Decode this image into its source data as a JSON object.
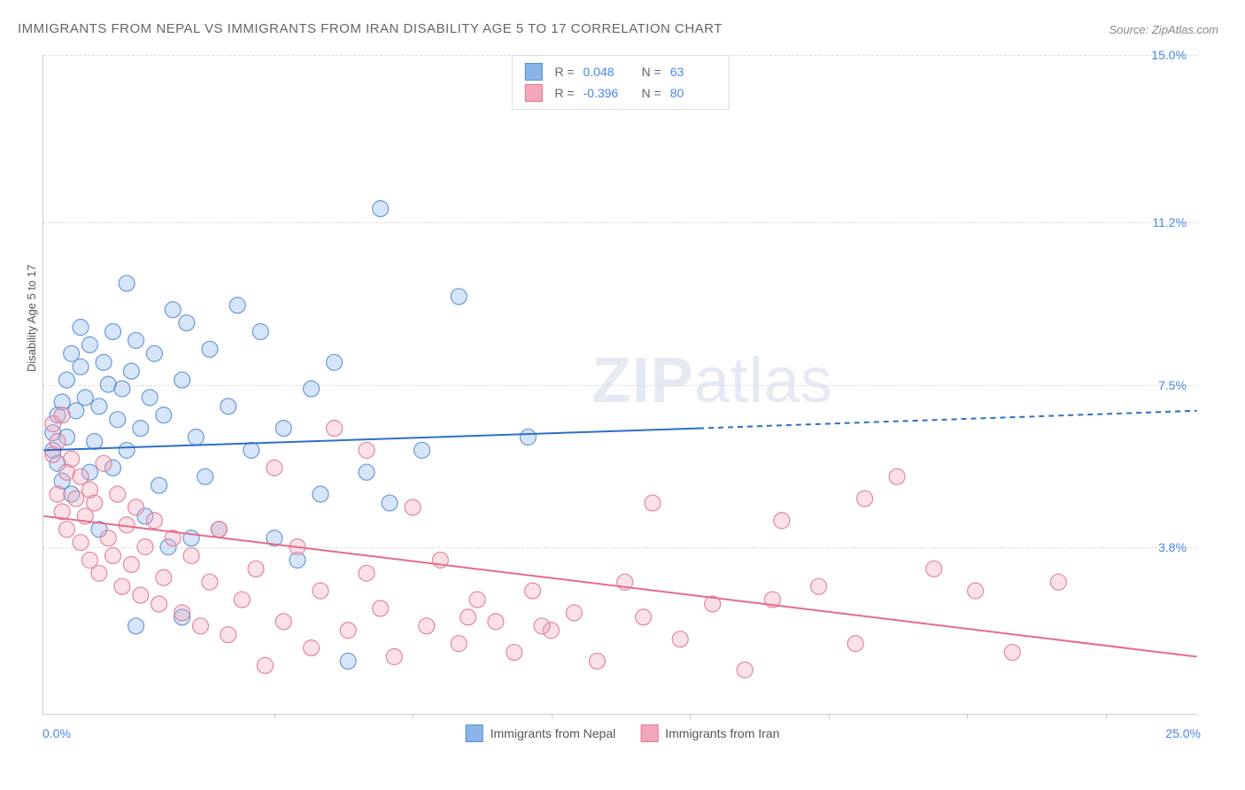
{
  "title": "IMMIGRANTS FROM NEPAL VS IMMIGRANTS FROM IRAN DISABILITY AGE 5 TO 17 CORRELATION CHART",
  "source": "Source: ZipAtlas.com",
  "y_axis_label": "Disability Age 5 to 17",
  "watermark": {
    "bold": "ZIP",
    "light": "atlas"
  },
  "chart": {
    "type": "scatter",
    "xlim": [
      0.0,
      25.0
    ],
    "ylim": [
      0.0,
      15.0
    ],
    "x_start_label": "0.0%",
    "x_end_label": "25.0%",
    "x_tick_positions": [
      5,
      8,
      11,
      14,
      17,
      20,
      23
    ],
    "y_gridlines": [
      {
        "value": 15.0,
        "label": "15.0%"
      },
      {
        "value": 11.2,
        "label": "11.2%"
      },
      {
        "value": 7.5,
        "label": "7.5%"
      },
      {
        "value": 3.8,
        "label": "3.8%"
      }
    ],
    "background_color": "#ffffff",
    "grid_color": "#dddddd",
    "axis_color": "#cccccc",
    "tick_label_color": "#4a86e8",
    "marker_radius": 9,
    "marker_fill_opacity": 0.35,
    "series": [
      {
        "name": "Immigrants from Nepal",
        "fill_color": "#8ab4e8",
        "stroke_color": "#5b8fd6",
        "stats": {
          "R": "0.048",
          "N": "63"
        },
        "regression": {
          "solid": {
            "x1": 0.0,
            "y1": 6.0,
            "x2": 14.2,
            "y2": 6.5
          },
          "dashed": {
            "x1": 14.2,
            "y1": 6.5,
            "x2": 25.0,
            "y2": 6.9
          },
          "line_color": "#2e6fc9",
          "line_width": 2
        },
        "points": [
          [
            0.2,
            6.0
          ],
          [
            0.2,
            6.4
          ],
          [
            0.3,
            5.7
          ],
          [
            0.3,
            6.8
          ],
          [
            0.4,
            7.1
          ],
          [
            0.4,
            5.3
          ],
          [
            0.5,
            6.3
          ],
          [
            0.5,
            7.6
          ],
          [
            0.6,
            8.2
          ],
          [
            0.6,
            5.0
          ],
          [
            0.7,
            6.9
          ],
          [
            0.8,
            7.9
          ],
          [
            0.8,
            8.8
          ],
          [
            0.9,
            7.2
          ],
          [
            1.0,
            8.4
          ],
          [
            1.0,
            5.5
          ],
          [
            1.1,
            6.2
          ],
          [
            1.2,
            7.0
          ],
          [
            1.3,
            8.0
          ],
          [
            1.4,
            7.5
          ],
          [
            1.5,
            8.7
          ],
          [
            1.5,
            5.6
          ],
          [
            1.6,
            6.7
          ],
          [
            1.7,
            7.4
          ],
          [
            1.8,
            9.8
          ],
          [
            1.8,
            6.0
          ],
          [
            1.9,
            7.8
          ],
          [
            2.0,
            8.5
          ],
          [
            2.1,
            6.5
          ],
          [
            2.2,
            4.5
          ],
          [
            2.3,
            7.2
          ],
          [
            2.4,
            8.2
          ],
          [
            2.5,
            5.2
          ],
          [
            2.6,
            6.8
          ],
          [
            2.7,
            3.8
          ],
          [
            2.8,
            9.2
          ],
          [
            3.0,
            7.6
          ],
          [
            3.1,
            8.9
          ],
          [
            3.2,
            4.0
          ],
          [
            3.3,
            6.3
          ],
          [
            3.5,
            5.4
          ],
          [
            3.6,
            8.3
          ],
          [
            3.8,
            4.2
          ],
          [
            4.0,
            7.0
          ],
          [
            4.2,
            9.3
          ],
          [
            4.5,
            6.0
          ],
          [
            4.7,
            8.7
          ],
          [
            5.0,
            4.0
          ],
          [
            5.2,
            6.5
          ],
          [
            5.5,
            3.5
          ],
          [
            5.8,
            7.4
          ],
          [
            6.0,
            5.0
          ],
          [
            6.3,
            8.0
          ],
          [
            6.6,
            1.2
          ],
          [
            7.0,
            5.5
          ],
          [
            7.3,
            11.5
          ],
          [
            7.5,
            4.8
          ],
          [
            8.2,
            6.0
          ],
          [
            9.0,
            9.5
          ],
          [
            10.5,
            6.3
          ],
          [
            2.0,
            2.0
          ],
          [
            3.0,
            2.2
          ],
          [
            1.2,
            4.2
          ]
        ]
      },
      {
        "name": "Immigrants from Iran",
        "fill_color": "#f2a8ba",
        "stroke_color": "#e27a95",
        "stats": {
          "R": "-0.396",
          "N": "80"
        },
        "regression": {
          "solid": {
            "x1": 0.0,
            "y1": 4.5,
            "x2": 25.0,
            "y2": 1.3
          },
          "line_color": "#e86a8a",
          "line_width": 2
        },
        "points": [
          [
            0.2,
            6.6
          ],
          [
            0.2,
            5.9
          ],
          [
            0.3,
            6.2
          ],
          [
            0.3,
            5.0
          ],
          [
            0.4,
            6.8
          ],
          [
            0.4,
            4.6
          ],
          [
            0.5,
            5.5
          ],
          [
            0.5,
            4.2
          ],
          [
            0.6,
            5.8
          ],
          [
            0.7,
            4.9
          ],
          [
            0.8,
            5.4
          ],
          [
            0.8,
            3.9
          ],
          [
            0.9,
            4.5
          ],
          [
            1.0,
            5.1
          ],
          [
            1.0,
            3.5
          ],
          [
            1.1,
            4.8
          ],
          [
            1.2,
            3.2
          ],
          [
            1.3,
            5.7
          ],
          [
            1.4,
            4.0
          ],
          [
            1.5,
            3.6
          ],
          [
            1.6,
            5.0
          ],
          [
            1.7,
            2.9
          ],
          [
            1.8,
            4.3
          ],
          [
            1.9,
            3.4
          ],
          [
            2.0,
            4.7
          ],
          [
            2.1,
            2.7
          ],
          [
            2.2,
            3.8
          ],
          [
            2.4,
            4.4
          ],
          [
            2.5,
            2.5
          ],
          [
            2.6,
            3.1
          ],
          [
            2.8,
            4.0
          ],
          [
            3.0,
            2.3
          ],
          [
            3.2,
            3.6
          ],
          [
            3.4,
            2.0
          ],
          [
            3.6,
            3.0
          ],
          [
            3.8,
            4.2
          ],
          [
            4.0,
            1.8
          ],
          [
            4.3,
            2.6
          ],
          [
            4.6,
            3.3
          ],
          [
            4.8,
            1.1
          ],
          [
            5.0,
            5.6
          ],
          [
            5.2,
            2.1
          ],
          [
            5.5,
            3.8
          ],
          [
            5.8,
            1.5
          ],
          [
            6.0,
            2.8
          ],
          [
            6.3,
            6.5
          ],
          [
            6.6,
            1.9
          ],
          [
            7.0,
            3.2
          ],
          [
            7.3,
            2.4
          ],
          [
            7.6,
            1.3
          ],
          [
            8.0,
            4.7
          ],
          [
            8.3,
            2.0
          ],
          [
            8.6,
            3.5
          ],
          [
            9.0,
            1.6
          ],
          [
            9.4,
            2.6
          ],
          [
            9.8,
            2.1
          ],
          [
            10.2,
            1.4
          ],
          [
            10.6,
            2.8
          ],
          [
            11.0,
            1.9
          ],
          [
            11.5,
            2.3
          ],
          [
            12.0,
            1.2
          ],
          [
            12.6,
            3.0
          ],
          [
            13.2,
            4.8
          ],
          [
            13.8,
            1.7
          ],
          [
            14.5,
            2.5
          ],
          [
            15.2,
            1.0
          ],
          [
            16.0,
            4.4
          ],
          [
            16.8,
            2.9
          ],
          [
            17.6,
            1.6
          ],
          [
            18.5,
            5.4
          ],
          [
            19.3,
            3.3
          ],
          [
            20.2,
            2.8
          ],
          [
            17.8,
            4.9
          ],
          [
            21.0,
            1.4
          ],
          [
            22.0,
            3.0
          ],
          [
            9.2,
            2.2
          ],
          [
            10.8,
            2.0
          ],
          [
            13.0,
            2.2
          ],
          [
            15.8,
            2.6
          ],
          [
            7.0,
            6.0
          ]
        ]
      }
    ],
    "legend_bottom": [
      {
        "label": "Immigrants from Nepal",
        "fill": "#8ab4e8",
        "stroke": "#5b8fd6"
      },
      {
        "label": "Immigrants from Iran",
        "fill": "#f2a8ba",
        "stroke": "#e27a95"
      }
    ]
  }
}
